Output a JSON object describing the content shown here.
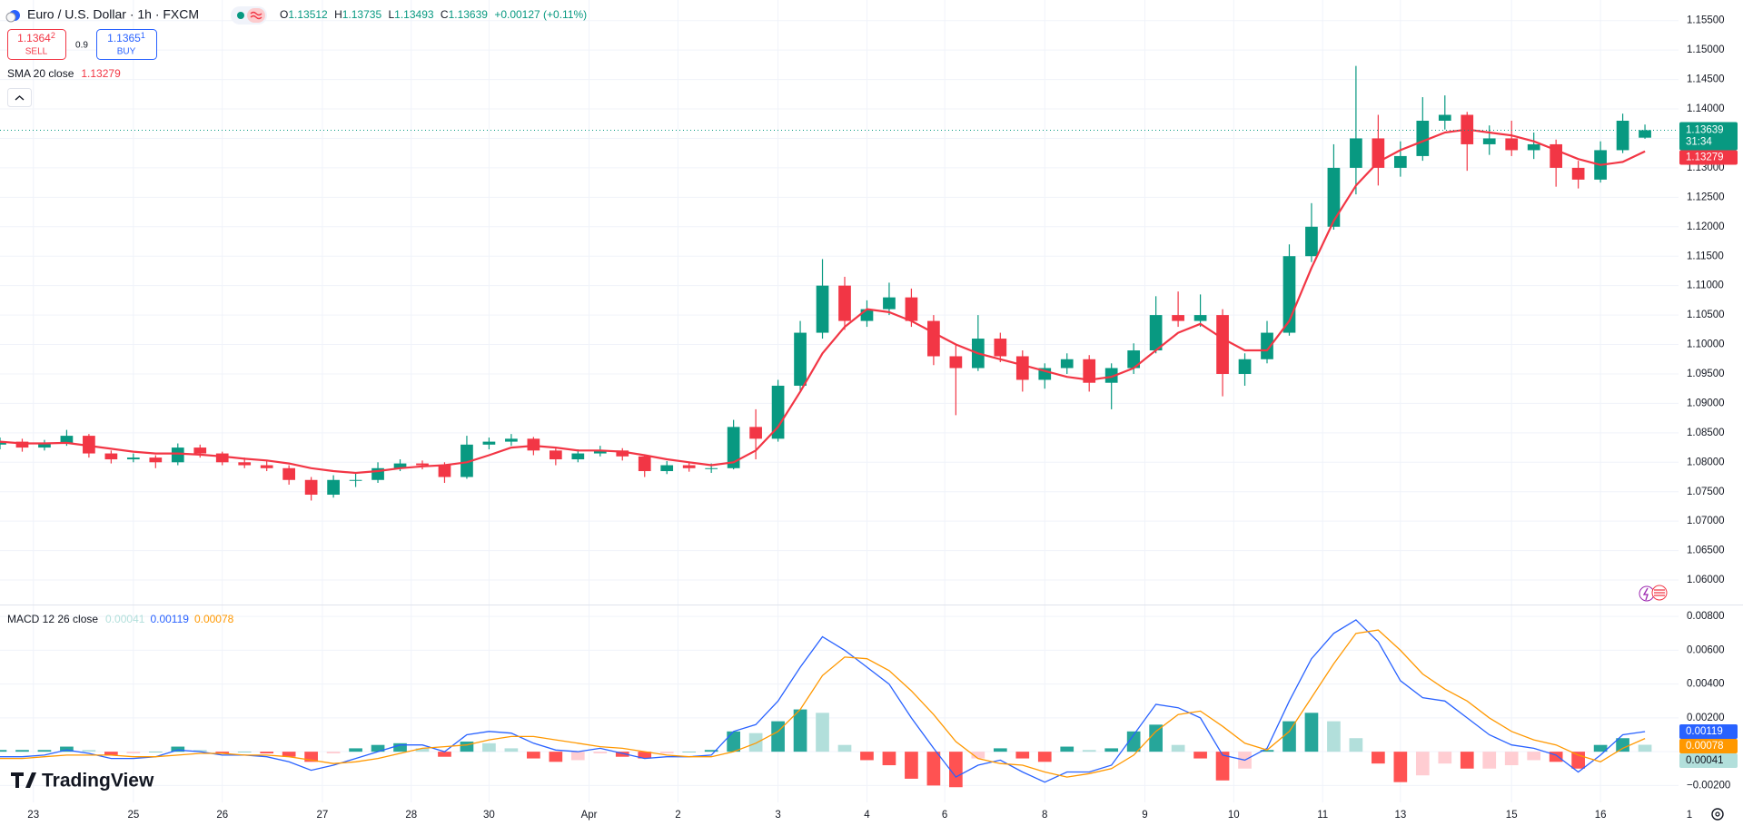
{
  "header": {
    "symbol": "Euro / U.S. Dollar · 1h · FXCM",
    "ohlc_letters": [
      "O",
      "H",
      "L",
      "C"
    ],
    "change": "+0.00127 (+0.11%)",
    "sell": {
      "price": "1.1364",
      "pip": "2",
      "label": "SELL"
    },
    "spread": "0.9",
    "buy": {
      "price": "1.1365",
      "pip": "1",
      "label": "BUY"
    },
    "countdown": "31:34",
    "logo": "TradingView"
  },
  "chart_data": [
    {
      "type": "candlestick",
      "up_color": "#089981",
      "down_color": "#f23645",
      "grid": true,
      "xlim": [
        0,
        76
      ],
      "ylim": [
        1.056,
        1.1585
      ],
      "yticks": [
        {
          "value": 1.06,
          "label": "1.06000"
        },
        {
          "value": 1.065,
          "label": "1.06500"
        },
        {
          "value": 1.07,
          "label": "1.07000"
        },
        {
          "value": 1.075,
          "label": "1.07500"
        },
        {
          "value": 1.08,
          "label": "1.08000"
        },
        {
          "value": 1.085,
          "label": "1.08500"
        },
        {
          "value": 1.09,
          "label": "1.09000"
        },
        {
          "value": 1.095,
          "label": "1.09500"
        },
        {
          "value": 1.1,
          "label": "1.10000"
        },
        {
          "value": 1.105,
          "label": "1.10500"
        },
        {
          "value": 1.11,
          "label": "1.11000"
        },
        {
          "value": 1.115,
          "label": "1.11500"
        },
        {
          "value": 1.12,
          "label": "1.12000"
        },
        {
          "value": 1.125,
          "label": "1.12500"
        },
        {
          "value": 1.13,
          "label": "1.13000"
        },
        {
          "value": 1.135,
          "label": "1.13500"
        },
        {
          "value": 1.14,
          "label": "1.14000"
        },
        {
          "value": 1.145,
          "label": "1.14500"
        },
        {
          "value": 1.15,
          "label": "1.15000"
        },
        {
          "value": 1.155,
          "label": "1.15500"
        }
      ],
      "x": [
        0,
        1,
        2,
        3,
        4,
        5,
        6,
        7,
        8,
        9,
        10,
        11,
        12,
        13,
        14,
        15,
        16,
        17,
        18,
        19,
        20,
        21,
        22,
        23,
        24,
        25,
        26,
        27,
        28,
        29,
        30,
        31,
        32,
        33,
        34,
        35,
        36,
        37,
        38,
        39,
        40,
        41,
        42,
        43,
        44,
        45,
        46,
        47,
        48,
        49,
        50,
        51,
        52,
        53,
        54,
        55,
        56,
        57,
        58,
        59,
        60,
        61,
        62,
        63,
        64,
        65,
        66,
        67,
        68,
        69,
        70,
        71,
        72,
        73,
        74
      ],
      "candles": [
        [
          1.083,
          1.0842,
          1.0822,
          1.0835
        ],
        [
          1.0835,
          1.084,
          1.0818,
          1.0825
        ],
        [
          1.0825,
          1.0838,
          1.082,
          1.0832
        ],
        [
          1.0832,
          1.0855,
          1.0828,
          1.0845
        ],
        [
          1.0845,
          1.0848,
          1.0808,
          1.0815
        ],
        [
          1.0815,
          1.082,
          1.0798,
          1.0805
        ],
        [
          1.0805,
          1.0815,
          1.08,
          1.0808
        ],
        [
          1.0808,
          1.0812,
          1.079,
          1.08
        ],
        [
          1.08,
          1.0832,
          1.0795,
          1.0825
        ],
        [
          1.0825,
          1.083,
          1.0808,
          1.0815
        ],
        [
          1.0815,
          1.0818,
          1.0795,
          1.08
        ],
        [
          1.08,
          1.0808,
          1.079,
          1.0795
        ],
        [
          1.0795,
          1.0802,
          1.0785,
          1.079
        ],
        [
          1.079,
          1.0795,
          1.0762,
          1.077
        ],
        [
          1.077,
          1.0775,
          1.0735,
          1.0745
        ],
        [
          1.0745,
          1.0778,
          1.074,
          1.077
        ],
        [
          1.077,
          1.0782,
          1.0758,
          1.077
        ],
        [
          1.077,
          1.08,
          1.0765,
          1.079
        ],
        [
          1.079,
          1.0805,
          1.0785,
          1.0798
        ],
        [
          1.0798,
          1.0803,
          1.0788,
          1.0795
        ],
        [
          1.0795,
          1.08,
          1.0765,
          1.0775
        ],
        [
          1.0775,
          1.0845,
          1.0772,
          1.083
        ],
        [
          1.083,
          1.0842,
          1.0822,
          1.0835
        ],
        [
          1.0835,
          1.0848,
          1.0828,
          1.084
        ],
        [
          1.084,
          1.0843,
          1.0812,
          1.082
        ],
        [
          1.082,
          1.0825,
          1.0795,
          1.0805
        ],
        [
          1.0805,
          1.0822,
          1.08,
          1.0815
        ],
        [
          1.0815,
          1.0828,
          1.081,
          1.082
        ],
        [
          1.082,
          1.0824,
          1.0803,
          1.081
        ],
        [
          1.081,
          1.0813,
          1.0775,
          1.0785
        ],
        [
          1.0785,
          1.0802,
          1.078,
          1.0795
        ],
        [
          1.0795,
          1.08,
          1.0784,
          1.079
        ],
        [
          1.079,
          1.0798,
          1.0782,
          1.079
        ],
        [
          1.079,
          1.0872,
          1.0788,
          1.086
        ],
        [
          1.086,
          1.089,
          1.0805,
          1.084
        ],
        [
          1.084,
          1.094,
          1.0835,
          1.093
        ],
        [
          1.093,
          1.104,
          1.0922,
          1.102
        ],
        [
          1.102,
          1.1145,
          1.101,
          1.11
        ],
        [
          1.11,
          1.1115,
          1.1025,
          1.104
        ],
        [
          1.104,
          1.1075,
          1.103,
          1.106
        ],
        [
          1.106,
          1.1105,
          1.105,
          1.108
        ],
        [
          1.108,
          1.1095,
          1.103,
          1.104
        ],
        [
          1.104,
          1.105,
          1.0965,
          1.098
        ],
        [
          1.098,
          1.1,
          1.088,
          1.096
        ],
        [
          1.096,
          1.105,
          1.0955,
          1.101
        ],
        [
          1.101,
          1.102,
          1.097,
          1.098
        ],
        [
          1.098,
          1.099,
          1.092,
          1.094
        ],
        [
          1.094,
          1.0968,
          1.0925,
          1.096
        ],
        [
          1.096,
          1.0985,
          1.095,
          1.0975
        ],
        [
          1.0975,
          1.0982,
          1.092,
          1.0935
        ],
        [
          1.0935,
          1.0968,
          1.089,
          1.096
        ],
        [
          1.096,
          1.1002,
          1.095,
          1.099
        ],
        [
          1.099,
          1.1082,
          1.0985,
          1.105
        ],
        [
          1.105,
          1.109,
          1.103,
          1.104
        ],
        [
          1.104,
          1.1085,
          1.103,
          1.105
        ],
        [
          1.105,
          1.106,
          1.0912,
          1.095
        ],
        [
          1.095,
          1.0985,
          1.093,
          1.0975
        ],
        [
          1.0975,
          1.104,
          1.0968,
          1.102
        ],
        [
          1.102,
          1.117,
          1.1015,
          1.115
        ],
        [
          1.115,
          1.124,
          1.114,
          1.12
        ],
        [
          1.12,
          1.134,
          1.1195,
          1.13
        ],
        [
          1.13,
          1.1473,
          1.1255,
          1.135
        ],
        [
          1.135,
          1.139,
          1.127,
          1.13
        ],
        [
          1.13,
          1.1345,
          1.1285,
          1.132
        ],
        [
          1.132,
          1.142,
          1.1312,
          1.138
        ],
        [
          1.138,
          1.1423,
          1.1365,
          1.139
        ],
        [
          1.139,
          1.1395,
          1.1295,
          1.134
        ],
        [
          1.134,
          1.1372,
          1.1322,
          1.135
        ],
        [
          1.135,
          1.138,
          1.132,
          1.133
        ],
        [
          1.133,
          1.136,
          1.1315,
          1.134
        ],
        [
          1.134,
          1.1348,
          1.1268,
          1.13
        ],
        [
          1.13,
          1.1312,
          1.1265,
          1.128
        ],
        [
          1.128,
          1.1345,
          1.1275,
          1.133
        ],
        [
          1.133,
          1.1392,
          1.1325,
          1.138
        ],
        [
          1.13512,
          1.13735,
          1.13493,
          1.13639
        ]
      ],
      "series": [
        {
          "name": "SMA 20 close",
          "color": "#f23645",
          "values": [
            1.0835,
            1.0832,
            1.0832,
            1.0833,
            1.0828,
            1.0823,
            1.0818,
            1.0815,
            1.0815,
            1.0813,
            1.081,
            1.0806,
            1.0803,
            1.0798,
            1.079,
            1.0785,
            1.0782,
            1.0785,
            1.079,
            1.0793,
            1.0795,
            1.08,
            1.0812,
            1.0825,
            1.0828,
            1.0825,
            1.082,
            1.082,
            1.0818,
            1.0812,
            1.0805,
            1.08,
            1.0795,
            1.08,
            1.082,
            1.086,
            1.092,
            1.0985,
            1.103,
            1.106,
            1.1055,
            1.104,
            1.102,
            1.1,
            1.0985,
            1.0975,
            1.0965,
            1.0955,
            1.0945,
            1.094,
            1.0945,
            1.096,
            1.099,
            1.102,
            1.1035,
            1.101,
            1.099,
            1.099,
            1.104,
            1.113,
            1.121,
            1.127,
            1.131,
            1.133,
            1.1345,
            1.136,
            1.1365,
            1.136,
            1.1355,
            1.1345,
            1.133,
            1.1315,
            1.1305,
            1.131,
            1.13279
          ]
        }
      ]
    },
    {
      "type": "macd",
      "legend": "MACD 12 26 close",
      "grid": true,
      "xlim": [
        0,
        76
      ],
      "ylim": [
        -0.003,
        0.0086
      ],
      "xticks": [
        {
          "value": 1.5,
          "label": "23"
        },
        {
          "value": 6,
          "label": "25"
        },
        {
          "value": 10,
          "label": "26"
        },
        {
          "value": 14.5,
          "label": "27"
        },
        {
          "value": 18.5,
          "label": "28"
        },
        {
          "value": 22,
          "label": "30"
        },
        {
          "value": 26.5,
          "label": "Apr"
        },
        {
          "value": 30.5,
          "label": "2"
        },
        {
          "value": 35,
          "label": "3"
        },
        {
          "value": 39,
          "label": "4"
        },
        {
          "value": 42.5,
          "label": "6"
        },
        {
          "value": 47,
          "label": "8"
        },
        {
          "value": 51.5,
          "label": "9"
        },
        {
          "value": 55.5,
          "label": "10"
        },
        {
          "value": 59.5,
          "label": "11"
        },
        {
          "value": 63,
          "label": "13"
        },
        {
          "value": 68,
          "label": "15"
        },
        {
          "value": 72,
          "label": "16"
        },
        {
          "value": 76,
          "label": "1"
        }
      ],
      "yticks": [
        {
          "value": 0.008,
          "label": "0.00800"
        },
        {
          "value": 0.006,
          "label": "0.00600"
        },
        {
          "value": 0.004,
          "label": "0.00400"
        },
        {
          "value": 0.002,
          "label": "0.00200"
        },
        {
          "value": 0,
          "label": "0.00000"
        },
        {
          "value": -0.002,
          "label": "−0.00200"
        }
      ],
      "x": [
        0,
        1,
        2,
        3,
        4,
        5,
        6,
        7,
        8,
        9,
        10,
        11,
        12,
        13,
        14,
        15,
        16,
        17,
        18,
        19,
        20,
        21,
        22,
        23,
        24,
        25,
        26,
        27,
        28,
        29,
        30,
        31,
        32,
        33,
        34,
        35,
        36,
        37,
        38,
        39,
        40,
        41,
        42,
        43,
        44,
        45,
        46,
        47,
        48,
        49,
        50,
        51,
        52,
        53,
        54,
        55,
        56,
        57,
        58,
        59,
        60,
        61,
        62,
        63,
        64,
        65,
        66,
        67,
        68,
        69,
        70,
        71,
        72,
        73,
        74
      ],
      "histogram": {
        "colors": [
          "#26a69a",
          "#b2dfdb",
          "#ff5252",
          "#ffcdd2"
        ],
        "values": [
          0.0001,
          0.0001,
          0.0001,
          0.0003,
          0.0001,
          -0.0002,
          -0.0001,
          0.0,
          0.0003,
          0.0001,
          -0.0001,
          0.0,
          -0.0001,
          -0.0003,
          -0.0006,
          -0.0001,
          0.0002,
          0.0004,
          0.0005,
          0.0002,
          -0.0003,
          0.0006,
          0.0005,
          0.0002,
          -0.0004,
          -0.0006,
          -0.0005,
          -0.0001,
          -0.0003,
          -0.0004,
          -0.0001,
          0.0,
          0.0001,
          0.0012,
          0.0011,
          0.0018,
          0.0025,
          0.0023,
          0.0004,
          -0.0005,
          -0.0008,
          -0.0016,
          -0.002,
          -0.0021,
          -0.0004,
          0.0002,
          -0.0004,
          -0.0006,
          0.0003,
          0.0001,
          0.0002,
          0.0012,
          0.0016,
          0.0004,
          -0.0004,
          -0.0017,
          -0.001,
          0.0001,
          0.0018,
          0.0023,
          0.0018,
          0.0008,
          -0.0007,
          -0.0018,
          -0.0014,
          -0.0007,
          -0.001,
          -0.001,
          -0.0008,
          -0.0005,
          -0.0006,
          -0.001,
          0.0004,
          0.0008,
          0.00041
        ]
      },
      "series": [
        {
          "color": "#2962ff",
          "values": [
            -0.0003,
            -0.0003,
            -0.0002,
            0.0001,
            -0.0001,
            -0.0004,
            -0.0004,
            -0.0003,
            0.0001,
            0.0,
            -0.0002,
            -0.0002,
            -0.0003,
            -0.0006,
            -0.0011,
            -0.0008,
            -0.0004,
            0.0,
            0.0004,
            0.0004,
            0.0,
            0.001,
            0.0012,
            0.0011,
            0.0005,
            0.0001,
            0.0,
            0.0002,
            -0.0001,
            -0.0004,
            -0.0003,
            -0.0003,
            -0.0002,
            0.0012,
            0.0016,
            0.003,
            0.005,
            0.0068,
            0.006,
            0.005,
            0.004,
            0.002,
            0.0002,
            -0.0015,
            -0.0008,
            -0.0005,
            -0.0012,
            -0.0018,
            -0.0012,
            -0.0012,
            -0.0008,
            0.001,
            0.0028,
            0.0026,
            0.002,
            -0.0002,
            -0.0005,
            0.0002,
            0.003,
            0.0055,
            0.007,
            0.0078,
            0.0065,
            0.0042,
            0.0032,
            0.003,
            0.002,
            0.001,
            0.0004,
            0.0002,
            -0.0002,
            -0.0012,
            -0.0002,
            0.001,
            0.00119
          ]
        },
        {
          "color": "#ff9800",
          "values": [
            -0.0004,
            -0.0004,
            -0.0003,
            -0.0002,
            -0.0002,
            -0.0002,
            -0.0003,
            -0.0003,
            -0.0002,
            -0.0001,
            -0.0001,
            -0.0002,
            -0.0002,
            -0.0003,
            -0.0005,
            -0.0007,
            -0.0006,
            -0.0004,
            -0.0001,
            0.0002,
            0.0003,
            0.0004,
            0.0007,
            0.0009,
            0.0009,
            0.0007,
            0.0005,
            0.0003,
            0.0002,
            0.0,
            -0.0002,
            -0.0003,
            -0.0003,
            0.0,
            0.0005,
            0.0012,
            0.0025,
            0.0045,
            0.0056,
            0.0055,
            0.0048,
            0.0036,
            0.0022,
            0.0006,
            -0.0004,
            -0.0007,
            -0.0008,
            -0.0012,
            -0.0015,
            -0.0013,
            -0.001,
            -0.0002,
            0.0012,
            0.0022,
            0.0024,
            0.0015,
            0.0005,
            0.0001,
            0.0012,
            0.0032,
            0.0052,
            0.007,
            0.0072,
            0.006,
            0.0046,
            0.0037,
            0.003,
            0.002,
            0.0012,
            0.0007,
            0.0004,
            -0.0002,
            -0.0006,
            0.0002,
            0.00078
          ]
        }
      ]
    }
  ]
}
